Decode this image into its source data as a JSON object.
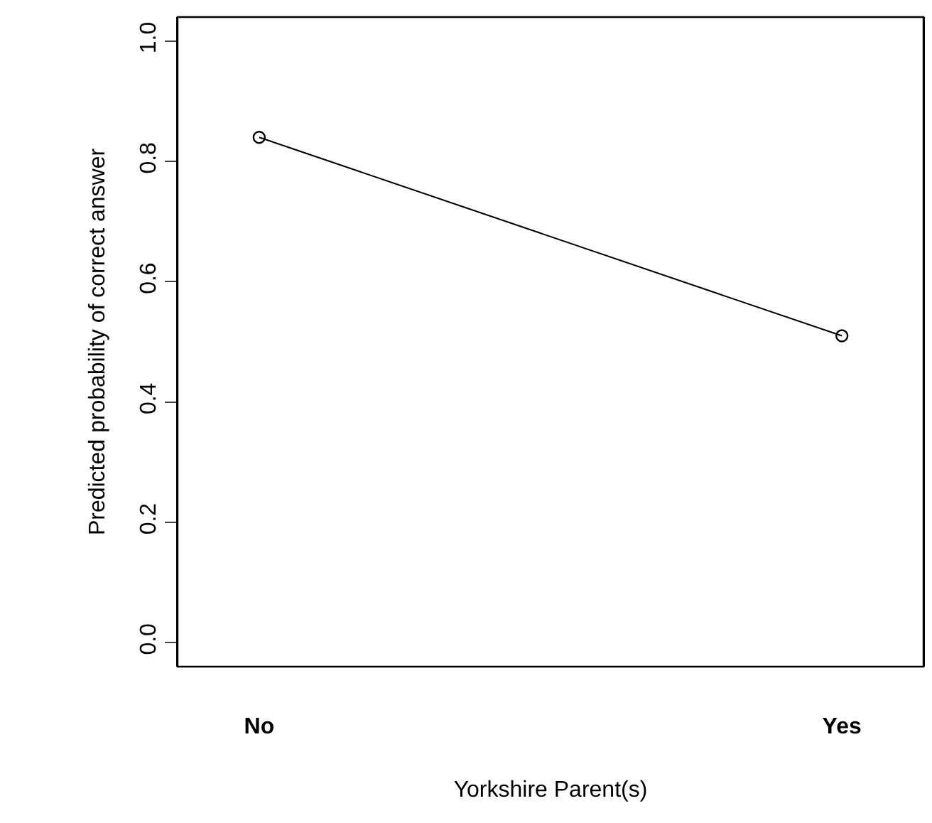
{
  "chart_data": {
    "type": "line",
    "categories": [
      "No",
      "Yes"
    ],
    "values": [
      0.84,
      0.51
    ],
    "color": "#000000",
    "marker": "circle",
    "line_style": "solid",
    "xlabel": "Yorkshire Parent(s)",
    "ylabel": "Predicted probability of correct answer",
    "ylim": [
      -0.04,
      1.04
    ],
    "yticks": [
      {
        "value": 0,
        "label": "0.0"
      },
      {
        "value": 0.2,
        "label": "0.2"
      },
      {
        "value": 0.4,
        "label": "0.4"
      },
      {
        "value": 0.6,
        "label": "0.6"
      },
      {
        "value": 0.8,
        "label": "0.8"
      },
      {
        "value": 1,
        "label": "1.0"
      }
    ],
    "grid": false,
    "legend": false
  }
}
